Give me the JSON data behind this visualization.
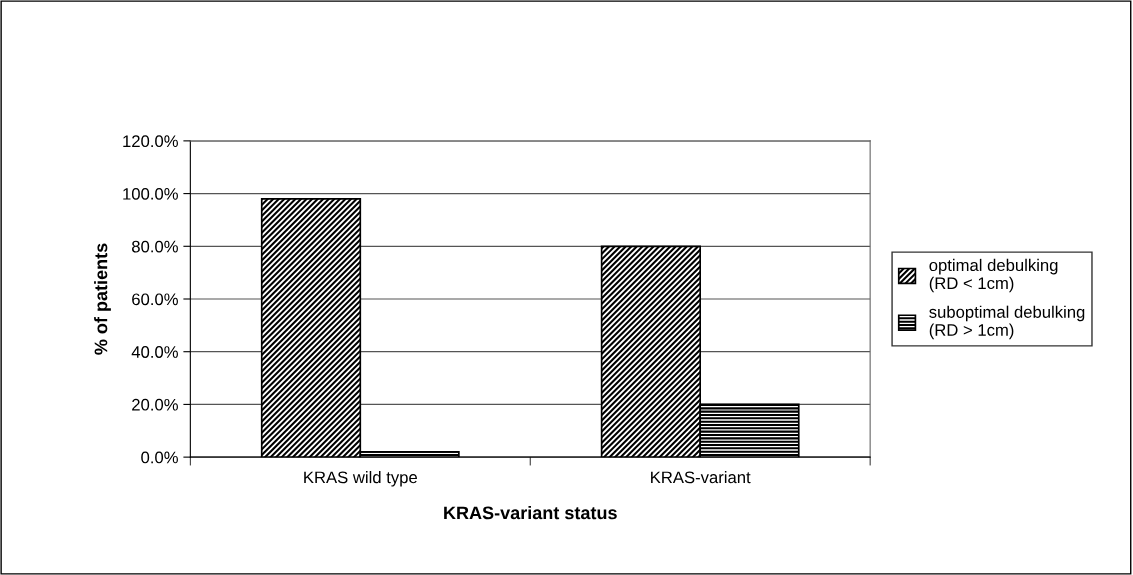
{
  "chart_data": {
    "type": "bar",
    "categories": [
      "KRAS wild type",
      "KRAS-variant"
    ],
    "series": [
      {
        "name": "optimal debulking\n(RD < 1cm)",
        "color": "#000000",
        "values": [
          98.0,
          80.0
        ]
      },
      {
        "name": "suboptimal debulking\n(RD > 1cm)",
        "color": "#000000",
        "values": [
          2.0,
          20.0
        ]
      }
    ],
    "ylim": [
      0,
      120
    ],
    "yticks": [
      {
        "value": 0,
        "label": "0.0%"
      },
      {
        "value": 20,
        "label": "20.0%"
      },
      {
        "value": 40,
        "label": "40.0%"
      },
      {
        "value": 60,
        "label": "60.0%"
      },
      {
        "value": 80,
        "label": "80.0%"
      },
      {
        "value": 100,
        "label": "100.0%"
      },
      {
        "value": 120,
        "label": "120.0%"
      }
    ],
    "ylabel": "% of patients",
    "xlabel": "KRAS-variant status",
    "grid": "y",
    "legend": "right"
  }
}
